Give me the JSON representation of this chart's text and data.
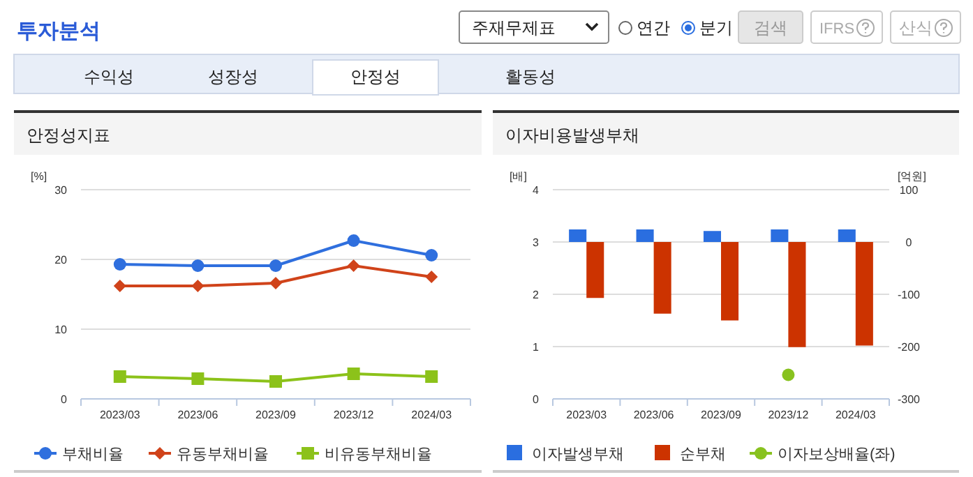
{
  "chart_data": [
    {
      "type": "other",
      "title": "투자분석",
      "annotations": [
        "주재무제표",
        "연간",
        "분기",
        "검색",
        "IFRS",
        "산식",
        "수익성",
        "성장성",
        "안정성",
        "활동성"
      ]
    },
    {
      "type": "line",
      "title": "안정성지표",
      "ylabel": "[%]",
      "categories": [
        "2023/03",
        "2023/06",
        "2023/09",
        "2023/12",
        "2024/03"
      ],
      "ylim": [
        0,
        30
      ],
      "yticks": [
        0,
        10,
        20,
        30
      ],
      "grid": "y",
      "legend": "bottom",
      "line_style": "solid",
      "series": [
        {
          "name": "부채비율",
          "color": "#2f6fde",
          "marker": "circle",
          "values": [
            19.3,
            19.1,
            19.1,
            22.7,
            20.6
          ]
        },
        {
          "name": "유동부채비율",
          "color": "#d0431a",
          "marker": "diamond",
          "values": [
            16.2,
            16.2,
            16.6,
            19.1,
            17.5
          ]
        },
        {
          "name": "비유동부채비율",
          "color": "#8cc21a",
          "marker": "square",
          "values": [
            3.2,
            2.9,
            2.5,
            3.6,
            3.2
          ]
        }
      ]
    },
    {
      "type": "bar",
      "title": "이자비용발생부채",
      "ylabel": "[배]",
      "y2label": "[억원]",
      "categories": [
        "2023/03",
        "2023/06",
        "2023/09",
        "2023/12",
        "2024/03"
      ],
      "ylim": [
        0,
        4
      ],
      "yticks": [
        0,
        1,
        2,
        3,
        4
      ],
      "y2lim": [
        -300,
        100
      ],
      "y2ticks": [
        -300,
        -200,
        -100,
        0,
        100
      ],
      "grid": "y",
      "legend": "bottom",
      "series": [
        {
          "name": "이자발생부채",
          "color": "#2a6ee0",
          "axis": "y2",
          "values": [
            24,
            24,
            21,
            24,
            24
          ]
        },
        {
          "name": "순부채",
          "color": "#cc3300",
          "axis": "y2",
          "values": [
            -107,
            -137,
            -150,
            -201,
            -198
          ]
        },
        {
          "name": "이자보상배율(좌)",
          "type": "scatter",
          "marker": "circle",
          "color": "#88c21f",
          "axis": "y",
          "values": [
            null,
            null,
            null,
            0.46,
            null
          ]
        }
      ]
    }
  ]
}
